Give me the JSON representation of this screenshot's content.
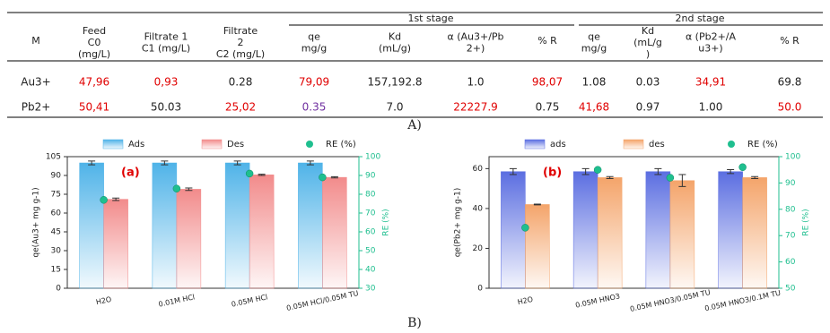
{
  "table": {
    "stages": [
      "1st stage",
      "2nd stage"
    ],
    "header": [
      [
        "M"
      ],
      [
        "Feed",
        "C0",
        "(mg/L)"
      ],
      [
        "Filtrate 1",
        "C1 (mg/L)"
      ],
      [
        "Filtrate",
        "2",
        "C2 (mg/L)"
      ],
      [
        "qe",
        "mg/g"
      ],
      [
        "Kd",
        "(mL/g)"
      ],
      [
        "α (Au3+/Pb",
        "2+)"
      ],
      [
        "% R"
      ],
      [
        "qe",
        "mg/g"
      ],
      [
        "Kd",
        "(mL/g",
        ")"
      ],
      [
        "α (Pb2+/A",
        "u3+)"
      ],
      [
        "% R"
      ]
    ],
    "rows": [
      {
        "cells": [
          "Au3+",
          "47,96",
          "0,93",
          "0.28",
          "79,09",
          "157,192.8",
          "1.0",
          "98,07",
          "1.08",
          "0.03",
          "34,91",
          "69.8"
        ],
        "colors": [
          "#222222",
          "#e00000",
          "#e00000",
          "#222222",
          "#e00000",
          "#222222",
          "#222222",
          "#e00000",
          "#222222",
          "#222222",
          "#e00000",
          "#222222"
        ]
      },
      {
        "cells": [
          "Pb2+",
          "50,41",
          "50.03",
          "25,02",
          "0.35",
          "7.0",
          "22227.9",
          "0.75",
          "41,68",
          "0.97",
          "1.00",
          "50.0"
        ],
        "colors": [
          "#222222",
          "#e00000",
          "#222222",
          "#e00000",
          "#7030a0",
          "#222222",
          "#e00000",
          "#222222",
          "#e00000",
          "#222222",
          "#222222",
          "#e00000"
        ]
      }
    ]
  },
  "caption_a": "A)",
  "caption_b": "B)",
  "chart_data": [
    {
      "type": "bar",
      "annotation": "(a)",
      "y_label": "qe(Au3+ mg g-1)",
      "y2_label": "RE (%)",
      "categories": [
        "H2O",
        "0.01M HCl",
        "0.05M HCl",
        "0.05M HCl/0.05M TU"
      ],
      "ylim": [
        0,
        105
      ],
      "yticks": [
        0,
        15,
        30,
        45,
        60,
        75,
        90,
        105
      ],
      "y2lim": [
        30,
        100
      ],
      "y2ticks": [
        30,
        40,
        50,
        60,
        70,
        80,
        90,
        100
      ],
      "series": [
        {
          "name": "Ads",
          "color": "#4fb3e8",
          "values": [
            100,
            100,
            100,
            100
          ],
          "errors": [
            1.5,
            1.5,
            1.5,
            1.5
          ]
        },
        {
          "name": "Des",
          "color": "#f28b8b",
          "values": [
            71,
            79,
            90.5,
            88.5
          ],
          "errors": [
            1,
            1,
            0.5,
            0.5
          ]
        },
        {
          "name": "RE (%)",
          "color": "#1fbf8f",
          "axis": "y2",
          "values": [
            77,
            83,
            91,
            89
          ]
        }
      ]
    },
    {
      "type": "bar",
      "annotation": "(b)",
      "y_label": "qe(Pb2+ mg g-1)",
      "y2_label": "RE (%)",
      "categories": [
        "H2O",
        "0.05M HNO3",
        "0.05M HNO3/0.05M TU",
        "0.05M HNO3/0.1M TU"
      ],
      "ylim": [
        0,
        66
      ],
      "yticks": [
        0,
        20,
        40,
        60
      ],
      "y2lim": [
        50,
        100
      ],
      "y2ticks": [
        50,
        60,
        70,
        80,
        90,
        100
      ],
      "series": [
        {
          "name": "ads",
          "color": "#5b6ee1",
          "values": [
            58.5,
            58.5,
            58.5,
            58.5
          ],
          "errors": [
            1.5,
            1.5,
            1.5,
            1
          ]
        },
        {
          "name": "des",
          "color": "#f4a46a",
          "values": [
            42,
            55.5,
            54,
            55.5
          ],
          "errors": [
            0.2,
            0.5,
            3,
            0.5
          ]
        },
        {
          "name": "RE (%)",
          "color": "#1fbf8f",
          "axis": "y2",
          "values": [
            73,
            95,
            92,
            96
          ]
        }
      ]
    }
  ]
}
